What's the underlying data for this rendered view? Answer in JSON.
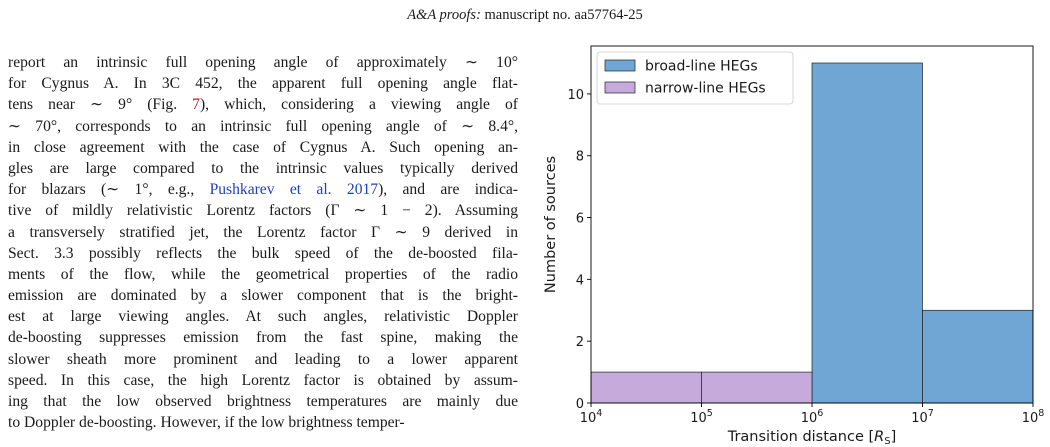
{
  "header": {
    "journal": "A&A proofs:",
    "manuscript": "manuscript no. aa57764-25"
  },
  "body_text": {
    "l1": "report an intrinsic full opening angle of approximately ∼ 10°",
    "l2": "for Cygnus A. In 3C 452, the apparent full opening angle flat-",
    "l3a": "tens near ∼ 9° (Fig. ",
    "l3_link": "7",
    "l3b": "), which, considering a viewing angle of",
    "l4": "∼ 70°, corresponds to an intrinsic full opening angle of ∼ 8.4°,",
    "l5": "in close agreement with the case of Cygnus A. Such opening an-",
    "l6": "gles are large compared to the intrinsic values typically derived",
    "l7a": "for blazars (∼ 1°, e.g., ",
    "l7_link": "Pushkarev et al. 2017",
    "l7b": "), and are indica-",
    "l8": "tive of mildly relativistic Lorentz factors (Γ ∼ 1 − 2). Assuming",
    "l9": "a transversely stratified jet, the Lorentz factor Γ ∼ 9 derived in",
    "l10": "Sect. 3.3 possibly reflects the bulk speed of the de-boosted fila-",
    "l11": "ments of the flow, while the geometrical properties of the radio",
    "l12": "emission are dominated by a slower component that is the bright-",
    "l13": "est at large viewing angles. At such angles, relativistic Doppler",
    "l14": "de-boosting suppresses emission from the fast spine, making the",
    "l15": "slower sheath more prominent and leading to a lower apparent",
    "l16": "speed. In this case, the high Lorentz factor is obtained by assum-",
    "l17": "ing that the low observed brightness temperatures are mainly due",
    "l18": "to Doppler de-boosting. However, if the low brightness temper-"
  },
  "chart_data": {
    "type": "bar",
    "xlabel_main": "Transition distance [",
    "xlabel_sym": "R",
    "xlabel_sub": "S",
    "xlabel_end": "]",
    "ylabel": "Number of sources",
    "x_scale": "log",
    "xlim_exp": [
      4,
      8
    ],
    "ylim": [
      0,
      11.55
    ],
    "x_tick_base": "10",
    "x_tick_exponents": [
      "4",
      "5",
      "6",
      "7",
      "8"
    ],
    "y_ticks": [
      0,
      2,
      4,
      6,
      8,
      10
    ],
    "y_tick_labels": [
      "0",
      "2",
      "4",
      "6",
      "8",
      "10"
    ],
    "legend_position": "top-left",
    "grid": false,
    "series": [
      {
        "name": "broad-line HEGs",
        "color": "#6fa6d4",
        "bins": [
          {
            "from_exp": 6,
            "to_exp": 7,
            "count": 11
          },
          {
            "from_exp": 7,
            "to_exp": 8,
            "count": 3
          }
        ]
      },
      {
        "name": "narrow-line HEGs",
        "color": "#c5aadb",
        "bins": [
          {
            "from_exp": 4,
            "to_exp": 5,
            "count": 1
          },
          {
            "from_exp": 5,
            "to_exp": 6,
            "count": 1
          }
        ]
      }
    ]
  }
}
